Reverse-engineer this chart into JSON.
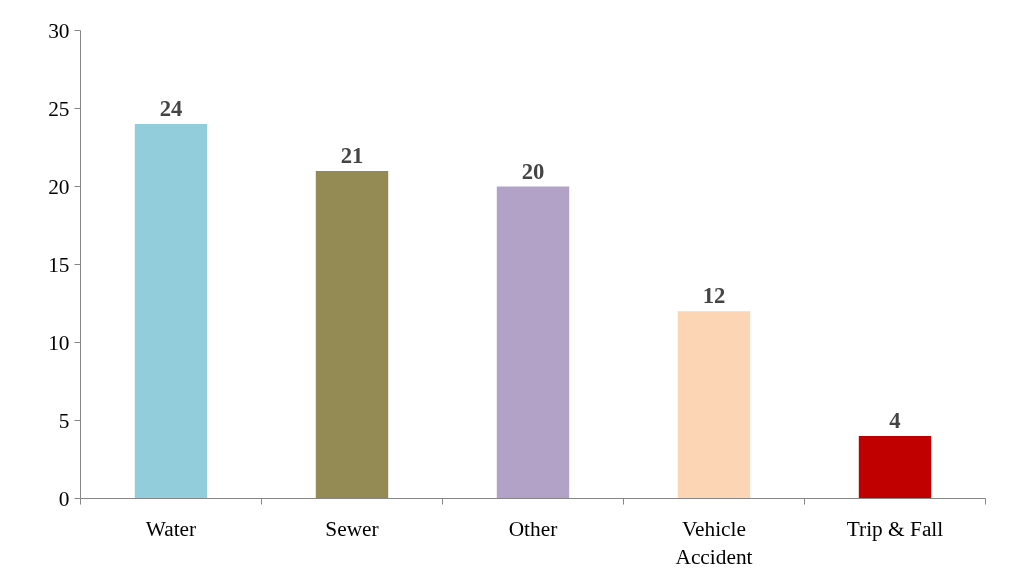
{
  "chart_data": {
    "type": "bar",
    "categories": [
      "Water",
      "Sewer",
      "Other",
      "Vehicle Accident",
      "Trip & Fall"
    ],
    "values": [
      24,
      21,
      20,
      12,
      4
    ],
    "colors": [
      "#92cddc",
      "#948a54",
      "#b2a2c7",
      "#fcd5b5",
      "#c00000"
    ],
    "ylim": [
      0,
      30
    ],
    "yticks": [
      0,
      5,
      10,
      15,
      20,
      25,
      30
    ],
    "grid": false,
    "data_labels": true
  }
}
